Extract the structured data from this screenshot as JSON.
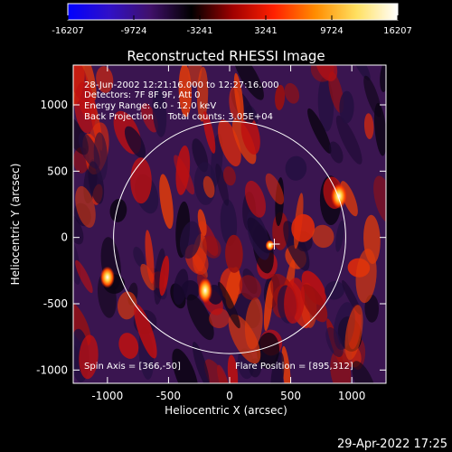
{
  "colorbar": {
    "tick_labels": [
      "-16207",
      "-9724",
      "-3241",
      "3241",
      "9724",
      "16207"
    ],
    "ticks": [
      -16207,
      -9724,
      -3241,
      3241,
      9724,
      16207
    ],
    "range": [
      -16207,
      16207
    ],
    "colors": [
      "#0000ff",
      "#3010c8",
      "#40106a",
      "#000000",
      "#a00000",
      "#ff2000",
      "#ff8c00",
      "#ffe060",
      "#ffffff"
    ]
  },
  "plot": {
    "title": "Reconstructed RHESSI Image",
    "xlabel": "Heliocentric X (arcsec)",
    "ylabel": "Heliocentric Y (arcsec)",
    "xlim": [
      -1280,
      1280
    ],
    "ylim": [
      -1100,
      1300
    ],
    "x_ticks": [
      -1000,
      -500,
      0,
      500,
      1000
    ],
    "y_ticks": [
      -1000,
      -500,
      0,
      500,
      1000
    ],
    "x_tick_labels": [
      "-1000",
      "-500",
      "0",
      "500",
      "1000"
    ],
    "y_tick_labels": [
      "-1000",
      "-500",
      "0",
      "500",
      "1000"
    ],
    "sun_radius_arcsec": 950,
    "spin_axis": [
      366,
      -50
    ],
    "flare_position": [
      895,
      312
    ],
    "info_lines": [
      "28-Jun-2002 12:21:16.000 to 12:27:16.000",
      "Detectors: 7F 8F 9F, Att 0",
      "Energy Range: 6.0 - 12.0 keV",
      "Back Projection     Total counts: 3.05E+04"
    ],
    "spin_axis_label": "Spin Axis = [366,-50]",
    "flare_position_label": "Flare Position = [895,312]"
  },
  "footer": {
    "timestamp": "29-Apr-2022 17:25"
  }
}
